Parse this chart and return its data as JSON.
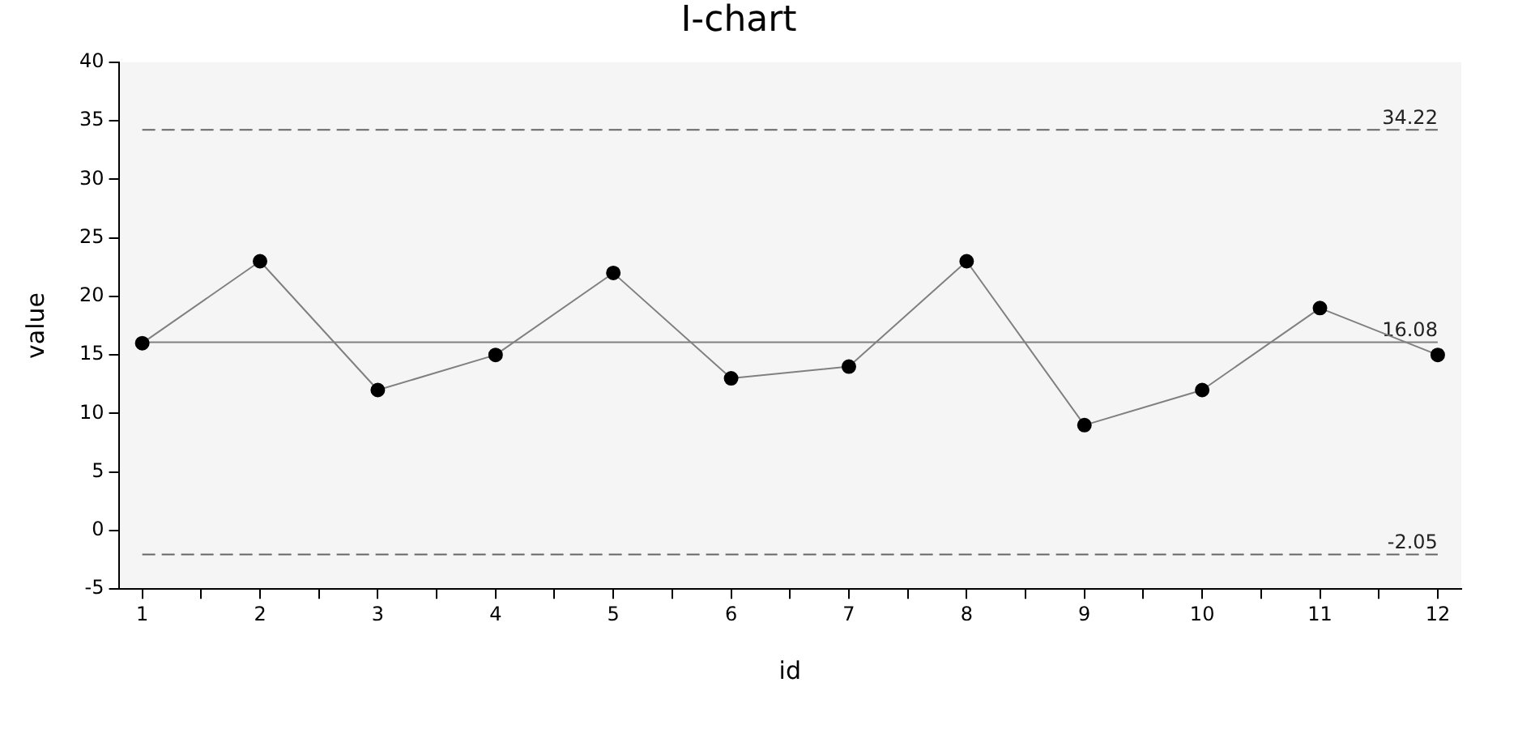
{
  "chart_data": {
    "type": "line",
    "title": "I-chart",
    "xlabel": "id",
    "ylabel": "value",
    "x": [
      1,
      2,
      3,
      4,
      5,
      6,
      7,
      8,
      9,
      10,
      11,
      12
    ],
    "series": [
      {
        "color": "#808080",
        "colors": [
          "#000000",
          "#000000",
          "#000000",
          "#000000",
          "#000000",
          "#000000",
          "#000000",
          "#000000",
          "#000000",
          "#000000",
          "#000000",
          "#000000"
        ],
        "values": [
          16,
          23,
          12,
          15,
          22,
          13,
          14,
          23,
          9,
          12,
          19,
          15
        ]
      }
    ],
    "xlim": [
      0.8,
      12.2
    ],
    "xticks": [
      1,
      {
        "value": 1.5,
        "label": null
      },
      2,
      {
        "value": 2.5,
        "label": null
      },
      3,
      {
        "value": 3.5,
        "label": null
      },
      4,
      {
        "value": 4.5,
        "label": null
      },
      5,
      {
        "value": 5.5,
        "label": null
      },
      6,
      {
        "value": 6.5,
        "label": null
      },
      7,
      {
        "value": 7.5,
        "label": null
      },
      8,
      {
        "value": 8.5,
        "label": null
      },
      9,
      {
        "value": 9.5,
        "label": null
      },
      10,
      {
        "value": 10.5,
        "label": null
      },
      11,
      {
        "value": 11.5,
        "label": null
      },
      12
    ],
    "ylim": [
      -5,
      40
    ],
    "yticks": [
      -5,
      0,
      5,
      10,
      15,
      20,
      25,
      30,
      35,
      40
    ],
    "ref_lines": [
      {
        "axis": "y",
        "value": 34.22,
        "label": "34.22",
        "color": "#666666",
        "line_style": "dashed"
      },
      {
        "axis": "y",
        "value": 16.08,
        "label": "16.08",
        "color": "#808080",
        "line_style": "solid"
      },
      {
        "axis": "y",
        "value": -2.05,
        "label": "-2.05",
        "color": "#666666",
        "line_style": "dashed"
      }
    ],
    "grid": false,
    "legend": false,
    "marker": "circle",
    "line_style": "solid"
  }
}
